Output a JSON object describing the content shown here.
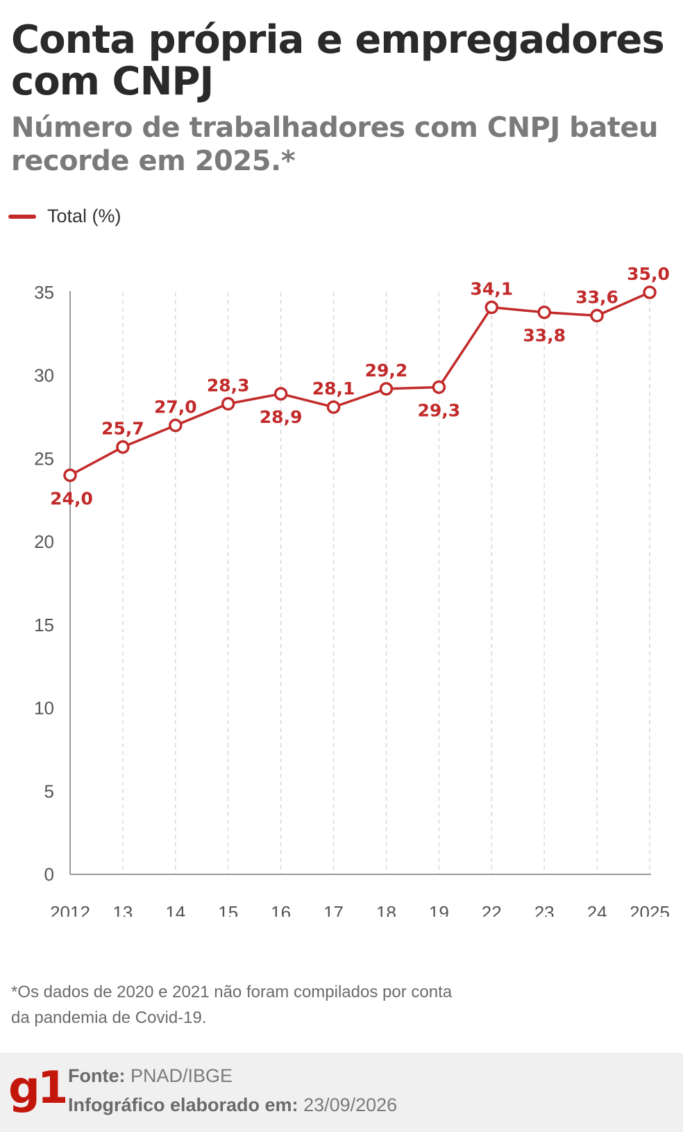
{
  "title": "Conta própria e empregadores com CNPJ",
  "subtitle": "Número de trabalhadores com CNPJ bateu recorde em 2025.*",
  "legend": {
    "label": "Total (%)"
  },
  "note": "*Os dados de 2020 e 2021 não foram compilados por conta da pandemia de Covid-19.",
  "footer": {
    "logo": "g1",
    "source_label": "Fonte:",
    "source_value": "PNAD/IBGE",
    "made_label": "Infográfico elaborado em:",
    "made_value": "23/09/2026"
  },
  "chart_data": {
    "type": "line",
    "categories": [
      "2012",
      "13",
      "14",
      "15",
      "16",
      "17",
      "18",
      "19",
      "22",
      "23",
      "24",
      "2025"
    ],
    "series": [
      {
        "name": "Total (%)",
        "values": [
          24.0,
          25.7,
          27.0,
          28.3,
          28.9,
          28.1,
          29.2,
          29.3,
          34.1,
          33.8,
          33.6,
          35.0
        ],
        "labels": [
          "24,0",
          "25,7",
          "27,0",
          "28,3",
          "28,9",
          "28,1",
          "29,2",
          "29,3",
          "34,1",
          "33,8",
          "33,6",
          "35,0"
        ],
        "label_positions": [
          "below",
          "above",
          "above",
          "above",
          "below",
          "above",
          "above",
          "below",
          "above",
          "below",
          "above",
          "above"
        ],
        "color": "#c22a2a"
      }
    ],
    "y_ticks": [
      "0",
      "5",
      "10",
      "15",
      "20",
      "25",
      "30",
      "35"
    ],
    "ylim": [
      0,
      35
    ],
    "grid": "vertical-dashed",
    "legend_position": "top-left"
  }
}
